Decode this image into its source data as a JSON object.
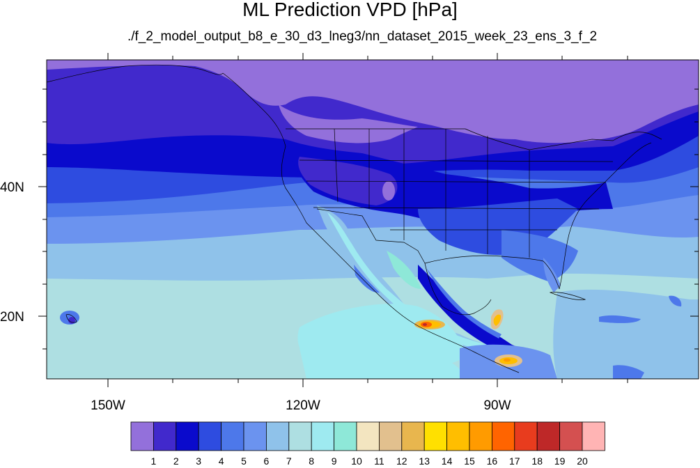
{
  "title": "ML Prediction VPD [hPa]",
  "subtitle": "./f_2_model_output_b8_e_30_d3_lneg3/nn_dataset_2015_week_23_ens_3_f_2",
  "lon_labels": [
    "150W",
    "120W",
    "90W"
  ],
  "lat_labels": [
    "40N",
    "20N"
  ],
  "colorbar": {
    "labels": [
      "1",
      "2",
      "3",
      "4",
      "5",
      "6",
      "7",
      "8",
      "9",
      "10",
      "11",
      "12",
      "13",
      "14",
      "15",
      "16",
      "17",
      "18",
      "19",
      "20"
    ],
    "colors": [
      "#9370db",
      "#4129cc",
      "#0a0acc",
      "#2e4ce0",
      "#4d78ea",
      "#6b93ef",
      "#8fc2ea",
      "#aedfe2",
      "#9eeaf0",
      "#8ee8d8",
      "#f3e5c0",
      "#e2c08e",
      "#e8b64e",
      "#ffe000",
      "#ffbe00",
      "#ff9b00",
      "#ff6400",
      "#e83c1e",
      "#be2828",
      "#d45050",
      "#ffb4b4"
    ]
  }
}
